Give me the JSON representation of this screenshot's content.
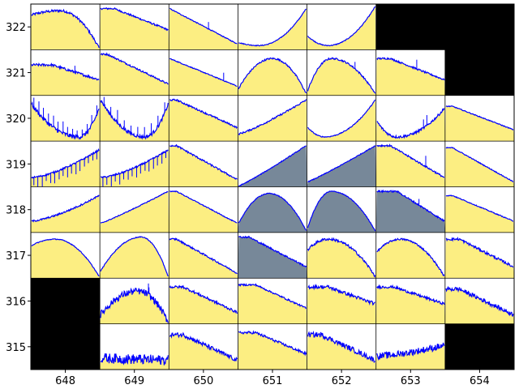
{
  "chart_data": {
    "type": "grid-of-line-plots",
    "title": "",
    "xlabel": "",
    "ylabel": "",
    "x_ticks": [
      "648",
      "649",
      "650",
      "651",
      "652",
      "653",
      "654"
    ],
    "y_ticks": [
      "322",
      "321",
      "320",
      "319",
      "318",
      "317",
      "316",
      "315"
    ],
    "legend": "none",
    "colors": {
      "fill": "#fcee82",
      "selected_fill": "#778899",
      "missing": "#000000",
      "line": "#0000ff",
      "background": "#ffffff"
    },
    "rows": [
      {
        "y": "322",
        "cells": [
          {
            "x": "648",
            "shape": "arch",
            "a": 0.8,
            "b": 0.9,
            "p": 0.42,
            "noise": 0.03,
            "spikes": 0
          },
          {
            "x": "649",
            "shape": "fall",
            "a": 0.95,
            "b": 0.45,
            "p": 0.2,
            "noise": 0.02,
            "spikes": 0
          },
          {
            "x": "650",
            "shape": "fall",
            "a": 0.95,
            "b": 0.12,
            "p": 0.0,
            "noise": 0.01,
            "spikes": 1
          },
          {
            "x": "651",
            "shape": "valley",
            "a": 0.15,
            "b": 0.95,
            "p": 0.3,
            "noise": 0.01,
            "spikes": 0
          },
          {
            "x": "652",
            "shape": "valley",
            "a": 0.3,
            "b": 1.0,
            "p": 0.3,
            "noise": 0.01,
            "spikes": 0
          },
          {
            "x": "653",
            "shape": "missing"
          },
          {
            "x": "654",
            "shape": "missing"
          }
        ]
      },
      {
        "y": "321",
        "cells": [
          {
            "x": "648",
            "shape": "fall",
            "a": 0.7,
            "b": 0.35,
            "p": 0.3,
            "noise": 0.03,
            "spikes": 1
          },
          {
            "x": "649",
            "shape": "fall",
            "a": 0.95,
            "b": 0.25,
            "p": 0.1,
            "noise": 0.02,
            "spikes": 0
          },
          {
            "x": "650",
            "shape": "fall",
            "a": 0.85,
            "b": 0.2,
            "p": 0.0,
            "noise": 0.01,
            "spikes": 1
          },
          {
            "x": "651",
            "shape": "arch",
            "a": 0.15,
            "b": 0.85,
            "p": 0.5,
            "noise": 0.02,
            "spikes": 0
          },
          {
            "x": "652",
            "shape": "arch",
            "a": 0.1,
            "b": 0.85,
            "p": 0.35,
            "noise": 0.02,
            "spikes": 1
          },
          {
            "x": "653",
            "shape": "fall",
            "a": 0.85,
            "b": 0.35,
            "p": 0.2,
            "noise": 0.02,
            "spikes": 1
          },
          {
            "x": "654",
            "shape": "missing"
          }
        ]
      },
      {
        "y": "320",
        "cells": [
          {
            "x": "648",
            "shape": "valley",
            "a": 0.85,
            "b": 0.75,
            "p": 0.7,
            "noise": 0.05,
            "spikes": 14
          },
          {
            "x": "649",
            "shape": "valley",
            "a": 0.95,
            "b": 0.85,
            "p": 0.65,
            "noise": 0.04,
            "spikes": 10
          },
          {
            "x": "650",
            "shape": "fall",
            "a": 0.95,
            "b": 0.3,
            "p": 0.1,
            "noise": 0.02,
            "spikes": 0
          },
          {
            "x": "651",
            "shape": "rise",
            "a": 0.15,
            "b": 0.95,
            "p": 0.2,
            "noise": 0.02,
            "spikes": 0
          },
          {
            "x": "652",
            "shape": "valley",
            "a": 0.3,
            "b": 0.95,
            "p": 0.25,
            "noise": 0.01,
            "spikes": 0
          },
          {
            "x": "653",
            "shape": "valley",
            "a": 0.45,
            "b": 0.75,
            "p": 0.3,
            "noise": 0.03,
            "spikes": 2
          },
          {
            "x": "654",
            "shape": "fall",
            "a": 0.8,
            "b": 0.25,
            "p": 0.1,
            "noise": 0.01,
            "spikes": 0
          }
        ]
      },
      {
        "y": "319",
        "cells": [
          {
            "x": "648",
            "shape": "rise",
            "a": 0.2,
            "b": 0.85,
            "p": 0.5,
            "noise": 0.02,
            "spikes": 16
          },
          {
            "x": "649",
            "shape": "rise",
            "a": 0.2,
            "b": 0.85,
            "p": 0.5,
            "noise": 0.02,
            "spikes": 16
          },
          {
            "x": "650",
            "shape": "fall",
            "a": 0.95,
            "b": 0.15,
            "p": 0.1,
            "noise": 0.02,
            "spikes": 0
          },
          {
            "x": "651",
            "shape": "rise",
            "a": 0.0,
            "b": 0.95,
            "p": 0.1,
            "noise": 0.01,
            "spikes": 0,
            "selected": true
          },
          {
            "x": "652",
            "shape": "rise",
            "a": 0.1,
            "b": 0.95,
            "p": 0.1,
            "noise": 0.01,
            "spikes": 0,
            "selected": true
          },
          {
            "x": "653",
            "shape": "fall",
            "a": 0.95,
            "b": 0.2,
            "p": 0.2,
            "noise": 0.02,
            "spikes": 1
          },
          {
            "x": "654",
            "shape": "fall",
            "a": 0.9,
            "b": 0.1,
            "p": 0.1,
            "noise": 0.01,
            "spikes": 0
          }
        ]
      },
      {
        "y": "318",
        "cells": [
          {
            "x": "648",
            "shape": "rise",
            "a": 0.25,
            "b": 0.85,
            "p": 0.45,
            "noise": 0.02,
            "spikes": 0
          },
          {
            "x": "649",
            "shape": "rise",
            "a": 0.2,
            "b": 0.95,
            "p": 0.1,
            "noise": 0.01,
            "spikes": 0
          },
          {
            "x": "650",
            "shape": "fall",
            "a": 0.95,
            "b": 0.2,
            "p": 0.1,
            "noise": 0.01,
            "spikes": 0
          },
          {
            "x": "651",
            "shape": "arch",
            "a": 0.2,
            "b": 0.9,
            "p": 0.45,
            "noise": 0.01,
            "spikes": 0,
            "selected": true
          },
          {
            "x": "652",
            "shape": "arch",
            "a": 0.1,
            "b": 0.95,
            "p": 0.35,
            "noise": 0.01,
            "spikes": 0,
            "selected": true
          },
          {
            "x": "653",
            "shape": "fall",
            "a": 0.95,
            "b": 0.25,
            "p": 0.3,
            "noise": 0.02,
            "spikes": 1,
            "selected": true
          },
          {
            "x": "654",
            "shape": "fall",
            "a": 0.85,
            "b": 0.25,
            "p": 0.1,
            "noise": 0.01,
            "spikes": 0
          }
        ]
      },
      {
        "y": "317",
        "cells": [
          {
            "x": "648",
            "shape": "arch",
            "a": 0.75,
            "b": 0.9,
            "p": 0.35,
            "noise": 0.01,
            "spikes": 0
          },
          {
            "x": "649",
            "shape": "arch",
            "a": 0.15,
            "b": 0.95,
            "p": 0.6,
            "noise": 0.01,
            "spikes": 0
          },
          {
            "x": "650",
            "shape": "fall",
            "a": 0.9,
            "b": 0.1,
            "p": 0.1,
            "noise": 0.02,
            "spikes": 0
          },
          {
            "x": "651",
            "shape": "fall",
            "a": 0.95,
            "b": 0.25,
            "p": 0.15,
            "noise": 0.02,
            "spikes": 0,
            "selected": true
          },
          {
            "x": "652",
            "shape": "arch",
            "a": 0.65,
            "b": 0.9,
            "p": 0.3,
            "noise": 0.03,
            "spikes": 0
          },
          {
            "x": "653",
            "shape": "arch",
            "a": 0.6,
            "b": 0.9,
            "p": 0.35,
            "noise": 0.02,
            "spikes": 0
          },
          {
            "x": "654",
            "shape": "fall",
            "a": 0.9,
            "b": 0.25,
            "p": 0.2,
            "noise": 0.03,
            "spikes": 0
          }
        ]
      },
      {
        "y": "316",
        "cells": [
          {
            "x": "648",
            "shape": "missing"
          },
          {
            "x": "649",
            "shape": "arch",
            "a": 0.2,
            "b": 0.75,
            "p": 0.55,
            "noise": 0.08,
            "spikes": 2
          },
          {
            "x": "650",
            "shape": "fall",
            "a": 0.85,
            "b": 0.25,
            "p": 0.2,
            "noise": 0.03,
            "spikes": 0
          },
          {
            "x": "651",
            "shape": "fall",
            "a": 0.9,
            "b": 0.35,
            "p": 0.25,
            "noise": 0.02,
            "spikes": 0
          },
          {
            "x": "652",
            "shape": "fall",
            "a": 0.85,
            "b": 0.45,
            "p": 0.3,
            "noise": 0.04,
            "spikes": 0
          },
          {
            "x": "653",
            "shape": "fall",
            "a": 0.85,
            "b": 0.45,
            "p": 0.25,
            "noise": 0.03,
            "spikes": 0
          },
          {
            "x": "654",
            "shape": "fall",
            "a": 0.8,
            "b": 0.2,
            "p": 0.2,
            "noise": 0.05,
            "spikes": 0
          }
        ]
      },
      {
        "y": "315",
        "cells": [
          {
            "x": "648",
            "shape": "missing"
          },
          {
            "x": "649",
            "shape": "flat",
            "a": 0.25,
            "b": 0.2,
            "p": 0.1,
            "noise": 0.12,
            "spikes": 0
          },
          {
            "x": "650",
            "shape": "fall",
            "a": 0.8,
            "b": 0.2,
            "p": 0.2,
            "noise": 0.05,
            "spikes": 0
          },
          {
            "x": "651",
            "shape": "fall",
            "a": 0.85,
            "b": 0.35,
            "p": 0.25,
            "noise": 0.03,
            "spikes": 0
          },
          {
            "x": "652",
            "shape": "fall",
            "a": 0.8,
            "b": 0.2,
            "p": 0.2,
            "noise": 0.06,
            "spikes": 0
          },
          {
            "x": "653",
            "shape": "rise",
            "a": 0.3,
            "b": 0.55,
            "p": 0.5,
            "noise": 0.08,
            "spikes": 0
          },
          {
            "x": "654",
            "shape": "missing"
          }
        ]
      }
    ]
  }
}
